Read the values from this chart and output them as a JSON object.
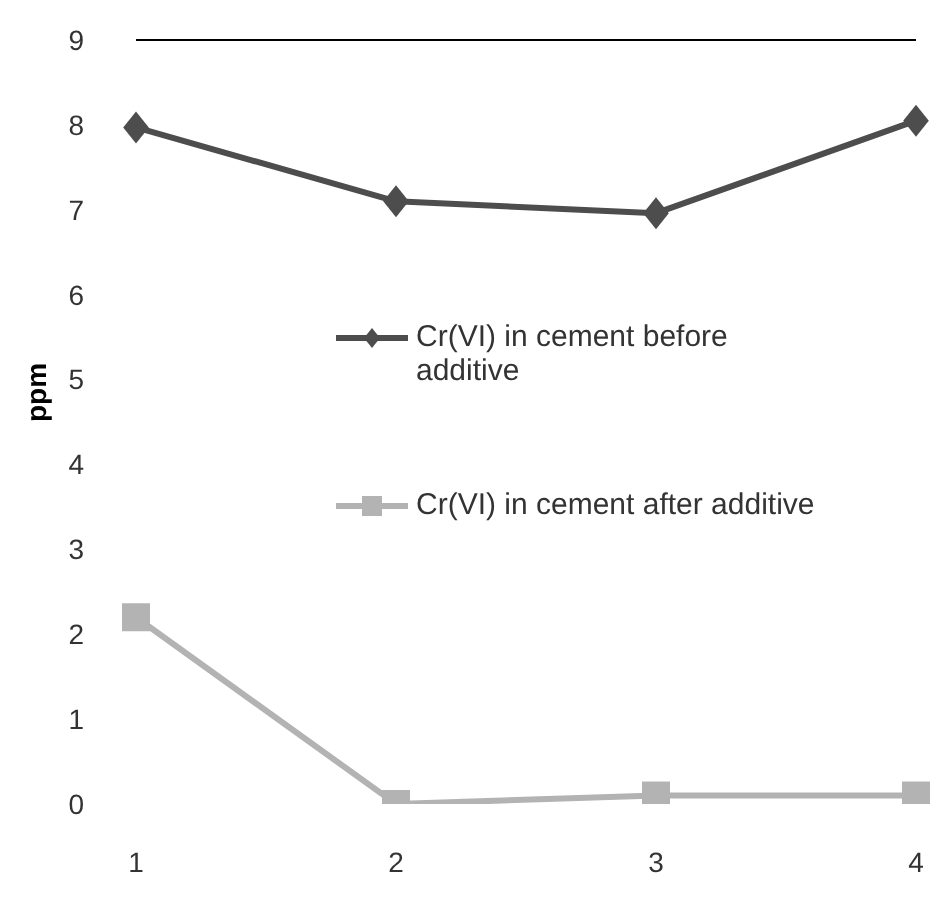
{
  "chart_data": {
    "type": "line",
    "ylabel": "ppm",
    "categories": [
      "1",
      "2",
      "3",
      "4"
    ],
    "series": [
      {
        "name": "Cr(VI) in cement before additive",
        "color": "#4d4d4d",
        "values": [
          7.97,
          7.1,
          6.96,
          8.05
        ],
        "marker": "diamond"
      },
      {
        "name": "Cr(VI) in cement after additive",
        "color": "#b3b3b3",
        "values": [
          2.2,
          0,
          0.1,
          0.1
        ],
        "marker": "square"
      }
    ],
    "ylim": [
      0,
      9
    ],
    "yticks": [
      0,
      1,
      2,
      3,
      4,
      5,
      6,
      7,
      8,
      9
    ],
    "grid": false,
    "legend": "right",
    "line_style": "solid",
    "ref_lines": [
      {
        "axis": "y",
        "value": 9,
        "color": "#000000"
      }
    ]
  }
}
